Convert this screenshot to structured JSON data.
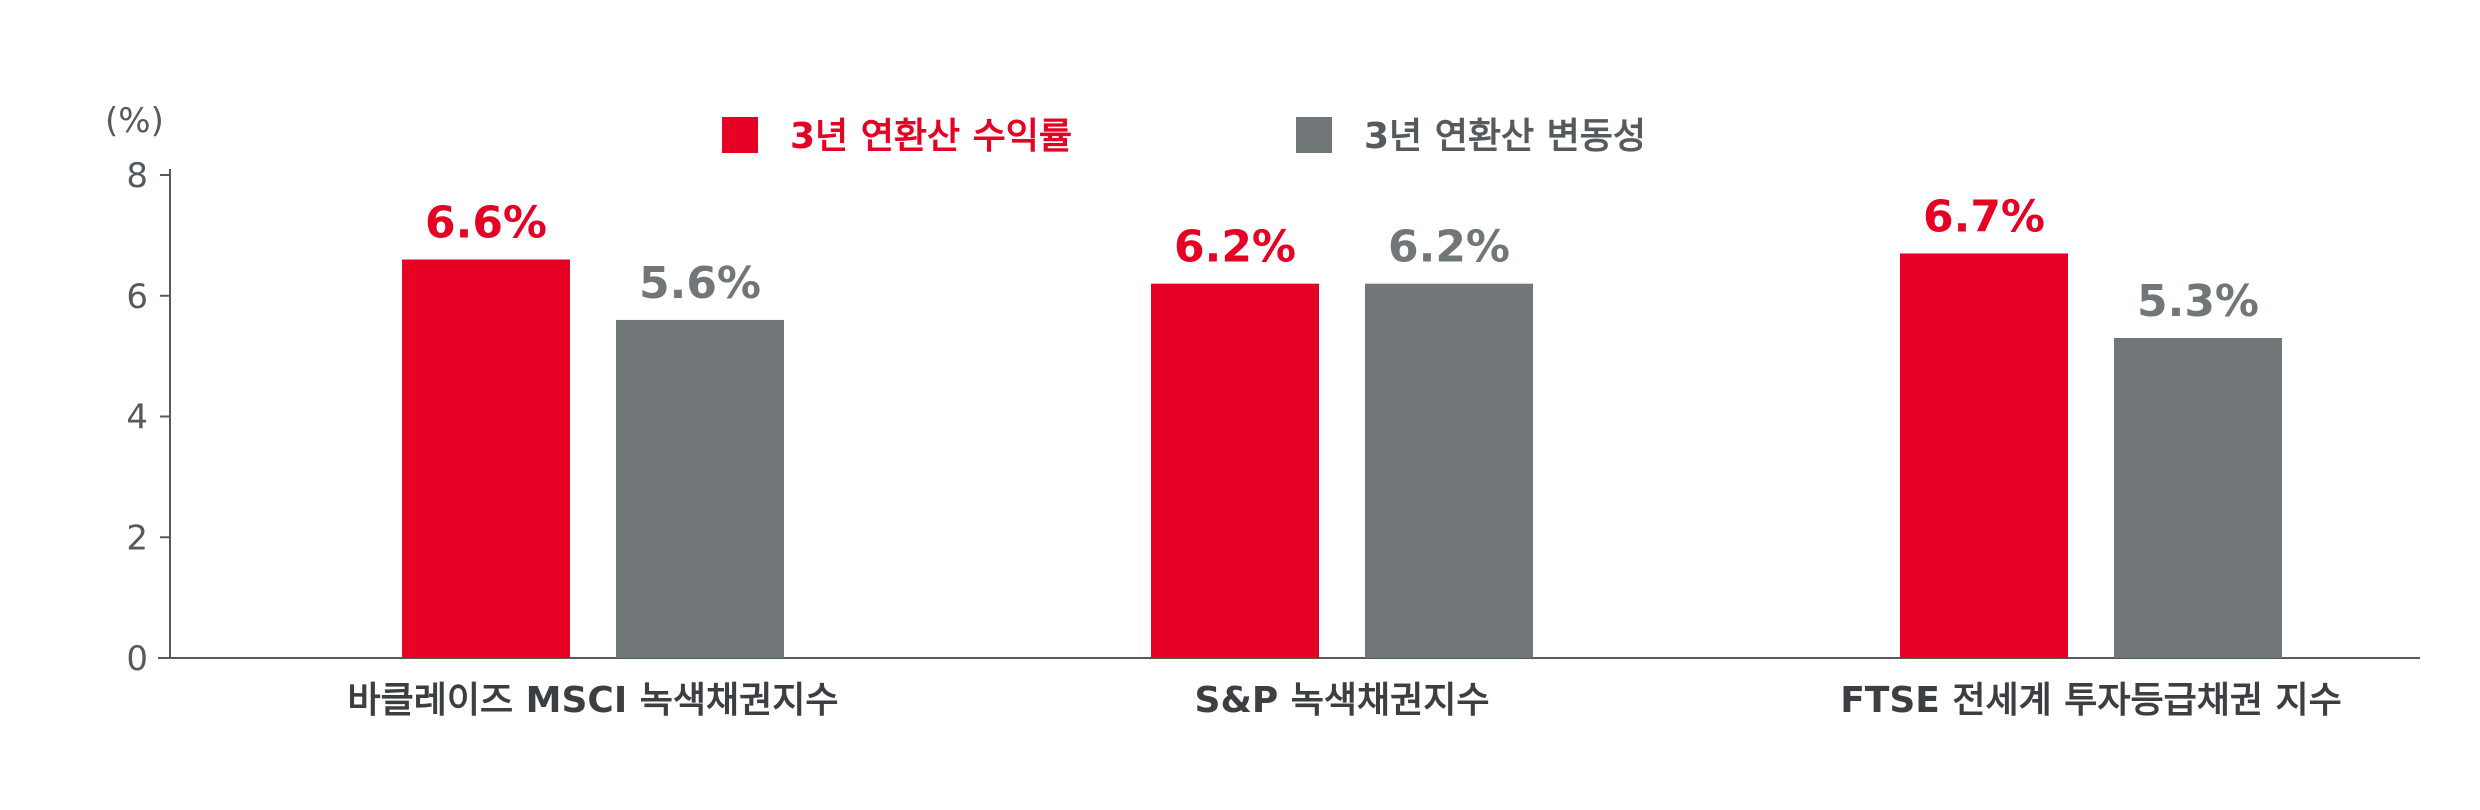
{
  "chart_data": {
    "type": "bar",
    "title": "",
    "unit_label": "(%)",
    "categories": [
      "바클레이즈 MSCI 녹색채권지수",
      "S&P 녹색채권지수",
      "FTSE 전세계 투자등급채권 지수"
    ],
    "series": [
      {
        "name": "3년 연환산 수익률",
        "color": "#e60023",
        "values": [
          6.6,
          6.2,
          6.7
        ],
        "labels": [
          "6.6%",
          "6.2%",
          "6.7%"
        ]
      },
      {
        "name": "3년 연환산 변동성",
        "color": "#717679",
        "values": [
          5.6,
          6.2,
          5.3
        ],
        "labels": [
          "5.6%",
          "6.2%",
          "5.3%"
        ]
      }
    ],
    "ylim": [
      0,
      8
    ],
    "yticks": [
      0,
      2,
      4,
      6,
      8
    ],
    "legend_position": "top-center",
    "grid": false
  }
}
